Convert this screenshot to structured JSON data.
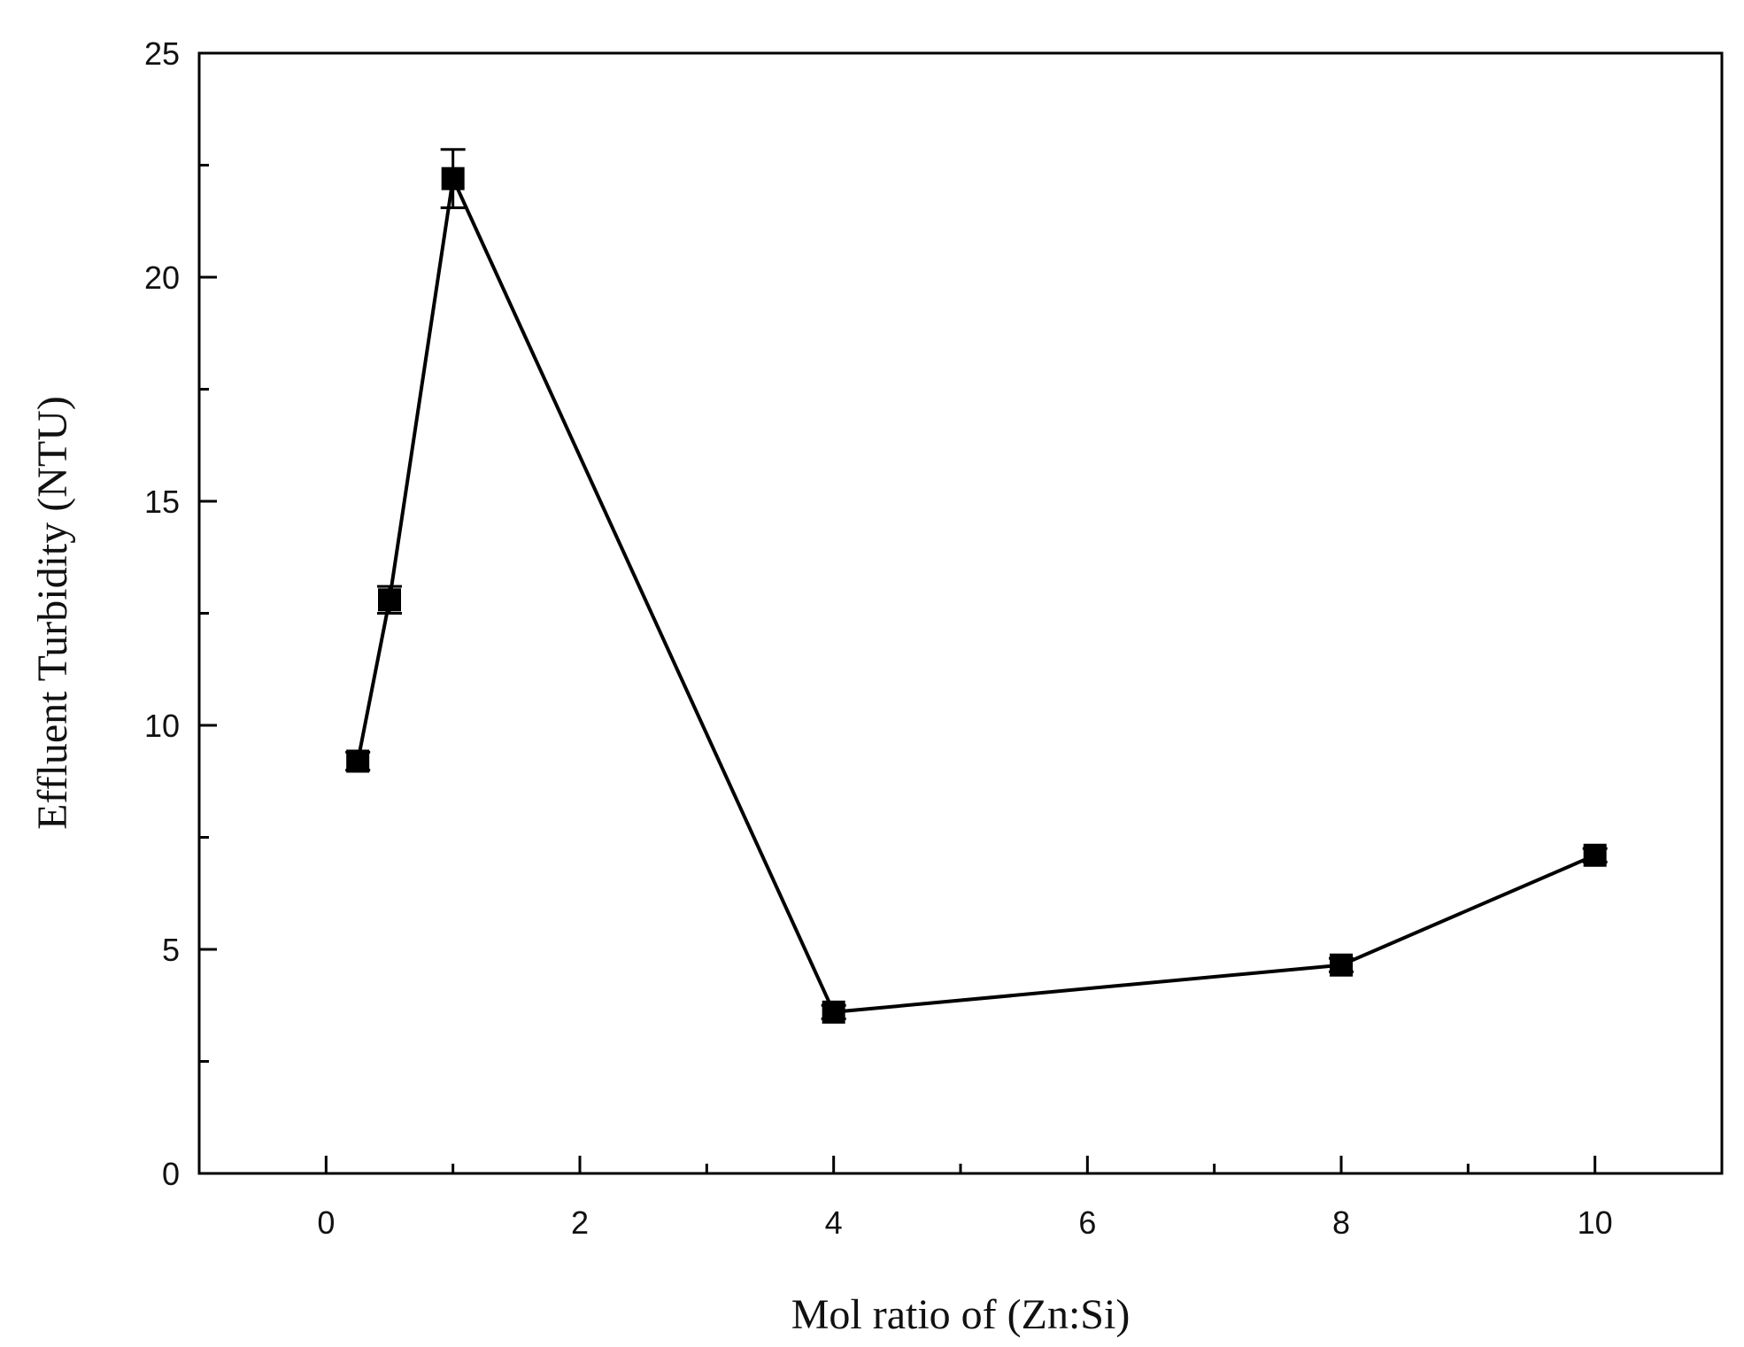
{
  "chart_data": {
    "type": "line",
    "title": "",
    "xlabel": "Mol ratio of (Zn:Si)",
    "ylabel": "Effluent Turbidity (NTU)",
    "xlim": [
      -1,
      11
    ],
    "ylim": [
      0,
      25
    ],
    "x_ticks": [
      0,
      2,
      4,
      6,
      8,
      10
    ],
    "x_minor_ticks": [
      1,
      3,
      5,
      7,
      9
    ],
    "y_ticks": [
      0,
      5,
      10,
      15,
      20,
      25
    ],
    "y_minor_ticks": [
      2.5,
      7.5,
      12.5,
      17.5,
      22.5
    ],
    "grid": false,
    "legend": "none",
    "series": [
      {
        "name": "Effluent Turbidity",
        "marker": "square",
        "color": "#000000",
        "x": [
          0.25,
          0.5,
          1,
          4,
          8,
          10
        ],
        "y": [
          9.2,
          12.8,
          22.2,
          3.6,
          4.65,
          7.1
        ],
        "error": [
          0.2,
          0.3,
          0.65,
          0.15,
          0.15,
          0.15
        ]
      }
    ]
  }
}
